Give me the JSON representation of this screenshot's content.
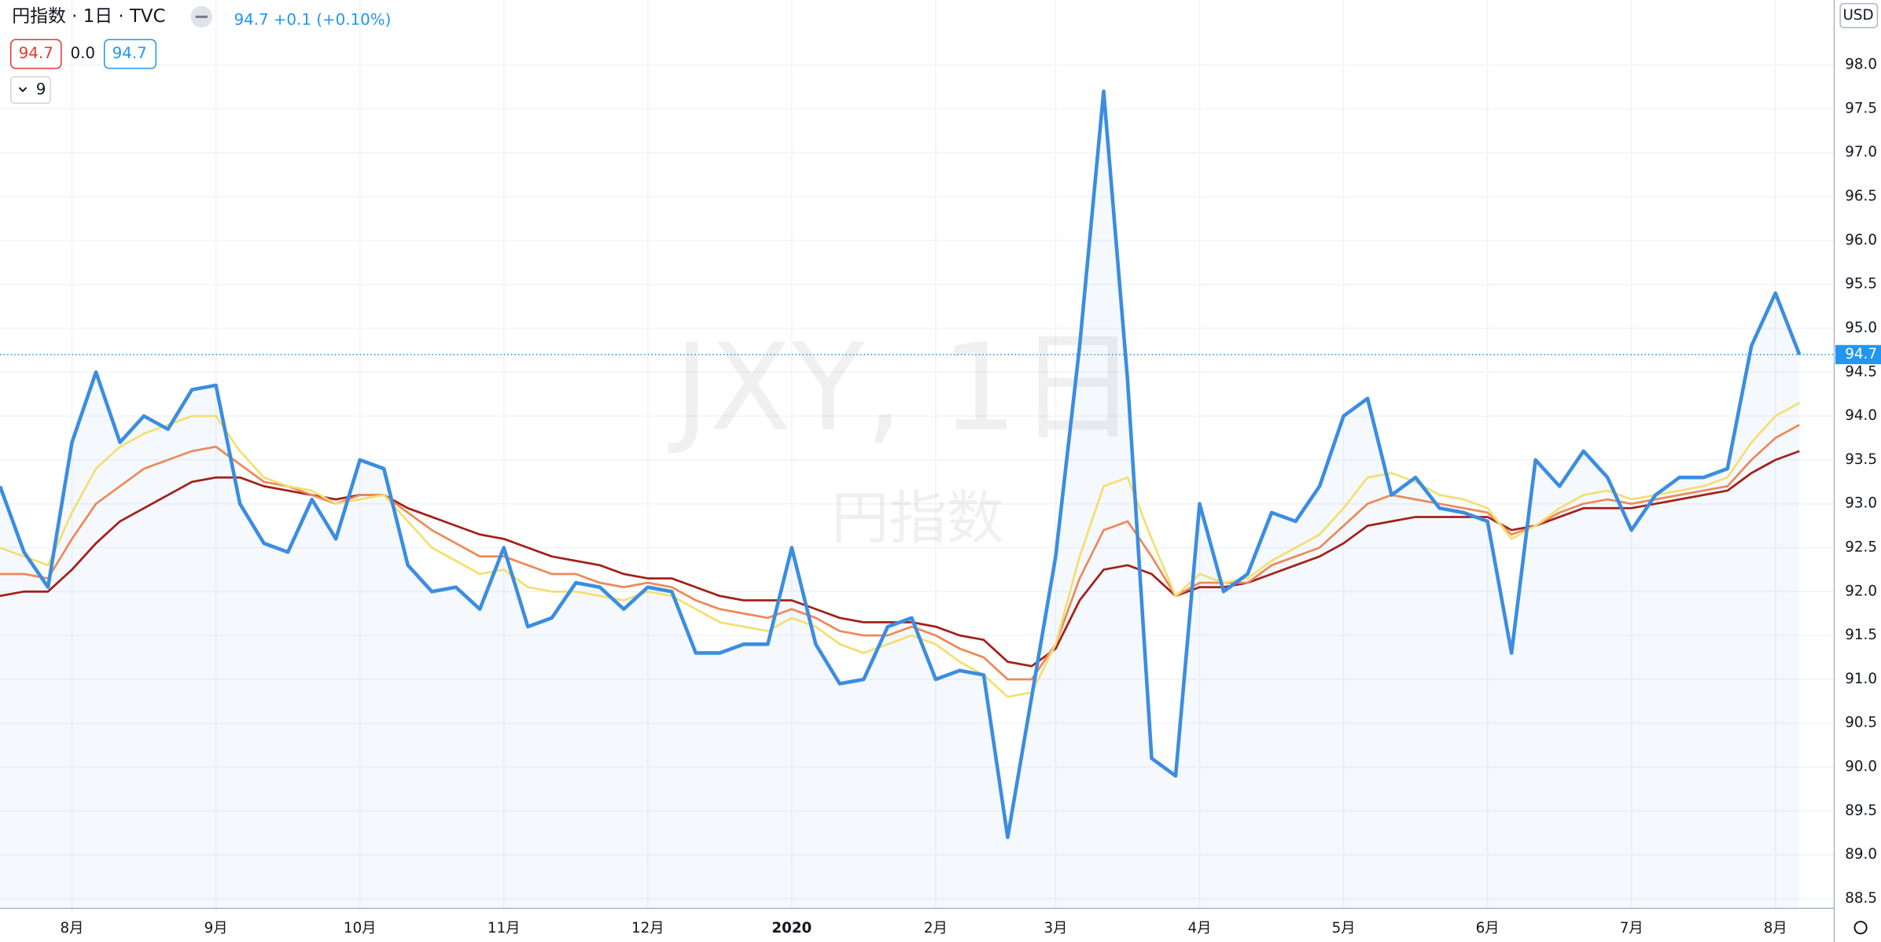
{
  "header": {
    "symbol": "円指数 · 1日 · TVC",
    "price": "94.7",
    "change": "+0.1 (+0.10%)",
    "indicator_values": [
      "94.7",
      "0.0",
      "94.7"
    ],
    "collapse_count": "9",
    "currency": "USD"
  },
  "watermark": {
    "symbol": "JXY, 1日",
    "name": "円指数"
  },
  "chart_data": {
    "type": "line",
    "last_value": 94.7,
    "grid": true,
    "categories": [
      null,
      null,
      null,
      "8月",
      null,
      null,
      null,
      null,
      null,
      "9月",
      null,
      null,
      null,
      null,
      null,
      "10月",
      null,
      null,
      null,
      null,
      null,
      "11月",
      null,
      null,
      null,
      null,
      null,
      "12月",
      null,
      null,
      null,
      null,
      null,
      "2020",
      null,
      null,
      null,
      null,
      null,
      "2月",
      null,
      null,
      null,
      null,
      "3月",
      null,
      null,
      null,
      null,
      null,
      "4月",
      null,
      null,
      null,
      null,
      null,
      "5月",
      null,
      null,
      null,
      null,
      null,
      "6月",
      null,
      null,
      null,
      null,
      null,
      "7月",
      null,
      null,
      null,
      null,
      null,
      "8月",
      null
    ],
    "ylim": [
      88.39,
      98.74
    ],
    "yticks": [
      88.5,
      {
        "value": 89,
        "label": "89.0"
      },
      89.5,
      {
        "value": 90,
        "label": "90.0"
      },
      90.5,
      {
        "value": 91,
        "label": "91.0"
      },
      91.5,
      {
        "value": 92,
        "label": "92.0"
      },
      92.5,
      {
        "value": 93,
        "label": "93.0"
      },
      93.5,
      {
        "value": 94,
        "label": "94.0"
      },
      94.5,
      {
        "value": 95,
        "label": "95.0"
      },
      95.5,
      {
        "value": 96,
        "label": "96.0"
      },
      96.5,
      {
        "value": 97,
        "label": "97.0"
      },
      97.5,
      {
        "value": 98,
        "label": "98.0"
      }
    ],
    "series": [
      {
        "name": "JXY",
        "color": "#3b8de0",
        "values": [
          93.2,
          92.45,
          92.05,
          93.7,
          94.5,
          93.7,
          94.0,
          93.85,
          94.3,
          94.35,
          93.0,
          92.55,
          92.45,
          93.05,
          92.6,
          93.5,
          93.4,
          92.3,
          92.0,
          92.05,
          91.8,
          92.5,
          91.6,
          91.7,
          92.1,
          92.05,
          91.8,
          92.05,
          92.0,
          91.3,
          91.3,
          91.4,
          91.4,
          92.5,
          91.4,
          90.95,
          91.0,
          91.6,
          91.7,
          91.0,
          91.1,
          91.05,
          89.2,
          90.8,
          92.4,
          94.8,
          97.7,
          94.4,
          90.1,
          89.9,
          93.0,
          92.0,
          92.2,
          92.9,
          92.8,
          93.2,
          94.0,
          94.2,
          93.1,
          93.3,
          92.95,
          92.9,
          92.8,
          91.3,
          93.5,
          93.2,
          93.6,
          93.3,
          92.7,
          93.1,
          93.3,
          93.3,
          93.4,
          94.8,
          95.4,
          94.7
        ]
      },
      {
        "color": "#a3201a",
        "values": [
          91.95,
          92.0,
          92.0,
          92.25,
          92.55,
          92.8,
          92.95,
          93.1,
          93.25,
          93.3,
          93.3,
          93.2,
          93.15,
          93.1,
          93.05,
          93.1,
          93.1,
          92.95,
          92.85,
          92.75,
          92.65,
          92.6,
          92.5,
          92.4,
          92.35,
          92.3,
          92.2,
          92.15,
          92.15,
          92.05,
          91.95,
          91.9,
          91.9,
          91.9,
          91.8,
          91.7,
          91.65,
          91.65,
          91.65,
          91.6,
          91.5,
          91.45,
          91.2,
          91.15,
          91.35,
          91.9,
          92.25,
          92.3,
          92.2,
          91.95,
          92.05,
          92.05,
          92.1,
          92.2,
          92.3,
          92.4,
          92.55,
          92.75,
          92.8,
          92.85,
          92.85,
          92.85,
          92.85,
          92.7,
          92.75,
          92.85,
          92.95,
          92.95,
          92.95,
          93.0,
          93.05,
          93.1,
          93.15,
          93.35,
          93.5,
          93.6
        ]
      },
      {
        "color": "#ec8a5a",
        "values": [
          92.2,
          92.2,
          92.15,
          92.6,
          93.0,
          93.2,
          93.4,
          93.5,
          93.6,
          93.65,
          93.45,
          93.25,
          93.2,
          93.1,
          93.0,
          93.1,
          93.1,
          92.9,
          92.7,
          92.55,
          92.4,
          92.4,
          92.3,
          92.2,
          92.2,
          92.1,
          92.05,
          92.1,
          92.05,
          91.9,
          91.8,
          91.75,
          91.7,
          91.8,
          91.7,
          91.55,
          91.5,
          91.5,
          91.6,
          91.5,
          91.35,
          91.25,
          91.0,
          91.0,
          91.4,
          92.15,
          92.7,
          92.8,
          92.4,
          91.95,
          92.1,
          92.1,
          92.1,
          92.3,
          92.4,
          92.5,
          92.75,
          93.0,
          93.1,
          93.05,
          93.0,
          92.95,
          92.9,
          92.65,
          92.75,
          92.9,
          93.0,
          93.05,
          93.0,
          93.05,
          93.1,
          93.15,
          93.2,
          93.5,
          93.75,
          93.9
        ]
      },
      {
        "color": "#f3df72",
        "values": [
          92.5,
          92.4,
          92.3,
          92.9,
          93.4,
          93.65,
          93.8,
          93.9,
          94.0,
          94.0,
          93.6,
          93.3,
          93.2,
          93.15,
          93.0,
          93.05,
          93.1,
          92.8,
          92.5,
          92.35,
          92.2,
          92.25,
          92.05,
          92.0,
          92.0,
          91.95,
          91.9,
          92.0,
          91.95,
          91.8,
          91.65,
          91.6,
          91.55,
          91.7,
          91.6,
          91.4,
          91.3,
          91.4,
          91.5,
          91.4,
          91.2,
          91.05,
          90.8,
          90.85,
          91.4,
          92.4,
          93.2,
          93.3,
          92.6,
          91.95,
          92.2,
          92.1,
          92.15,
          92.35,
          92.5,
          92.65,
          92.95,
          93.3,
          93.35,
          93.25,
          93.1,
          93.05,
          92.95,
          92.6,
          92.75,
          92.95,
          93.1,
          93.15,
          93.05,
          93.1,
          93.15,
          93.2,
          93.3,
          93.7,
          94.0,
          94.15
        ]
      }
    ]
  }
}
